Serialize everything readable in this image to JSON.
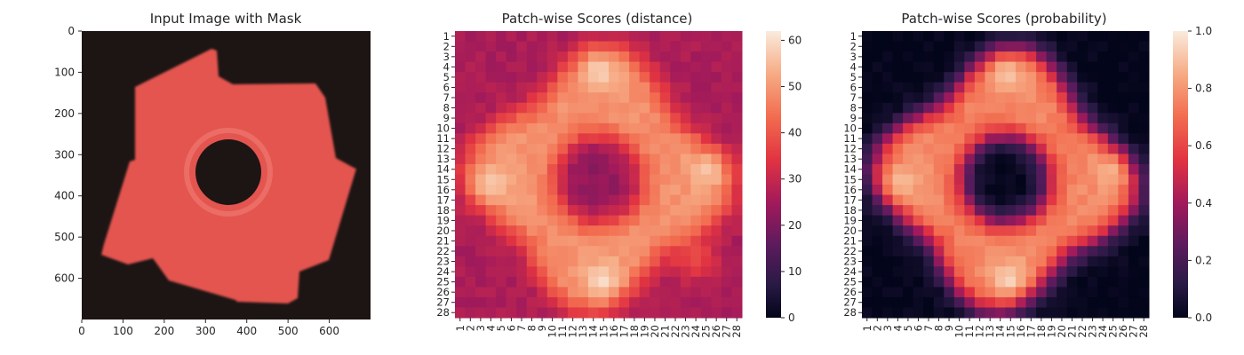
{
  "chart_data": [
    {
      "type": "image",
      "title": "Input Image with Mask",
      "xlim": [
        0,
        700
      ],
      "ylim": [
        700,
        0
      ],
      "xticks": [
        0,
        100,
        200,
        300,
        400,
        500,
        600
      ],
      "yticks": [
        0,
        100,
        200,
        300,
        400,
        500,
        600
      ],
      "mask_color": "#e4544f",
      "background_color": "#1c1514",
      "object": {
        "shape": "four-tab gear ring with center hole",
        "center": [
          330,
          360
        ],
        "hole_radius": 60
      }
    },
    {
      "type": "heatmap",
      "title": "Patch-wise Scores (distance)",
      "x_categories": [
        "1",
        "2",
        "3",
        "4",
        "5",
        "6",
        "7",
        "8",
        "9",
        "10",
        "11",
        "12",
        "13",
        "14",
        "15",
        "16",
        "17",
        "18",
        "19",
        "20",
        "21",
        "22",
        "23",
        "24",
        "25",
        "26",
        "27",
        "28"
      ],
      "y_categories": [
        "1",
        "2",
        "3",
        "4",
        "5",
        "6",
        "7",
        "8",
        "9",
        "10",
        "11",
        "12",
        "13",
        "14",
        "15",
        "16",
        "17",
        "18",
        "19",
        "20",
        "21",
        "22",
        "23",
        "24",
        "25",
        "26",
        "27",
        "28"
      ],
      "colorbar": {
        "min": 0,
        "max": 62,
        "ticks": [
          0,
          10,
          20,
          30,
          40,
          50,
          60
        ]
      },
      "colormap": "rocket",
      "description_values": "background edge ~25-30, object ring ~45-55, tab peaks ~60, center hole ~25-30"
    },
    {
      "type": "heatmap",
      "title": "Patch-wise Scores (probability)",
      "x_categories": [
        "1",
        "2",
        "3",
        "4",
        "5",
        "6",
        "7",
        "8",
        "9",
        "10",
        "11",
        "12",
        "13",
        "14",
        "15",
        "16",
        "17",
        "18",
        "19",
        "20",
        "21",
        "22",
        "23",
        "24",
        "25",
        "26",
        "27",
        "28"
      ],
      "y_categories": [
        "1",
        "2",
        "3",
        "4",
        "5",
        "6",
        "7",
        "8",
        "9",
        "10",
        "11",
        "12",
        "13",
        "14",
        "15",
        "16",
        "17",
        "18",
        "19",
        "20",
        "21",
        "22",
        "23",
        "24",
        "25",
        "26",
        "27",
        "28"
      ],
      "colorbar": {
        "min": 0.0,
        "max": 1.0,
        "ticks": [
          0.0,
          0.2,
          0.4,
          0.6,
          0.8,
          1.0
        ],
        "tick_labels": [
          "0.0",
          "0.2",
          "0.4",
          "0.6",
          "0.8",
          "1.0"
        ]
      },
      "colormap": "rocket",
      "description_values": "background ~0.0-0.1, object ring ~0.7-0.8, tab peaks ~0.95, center hole ~0.0"
    }
  ]
}
